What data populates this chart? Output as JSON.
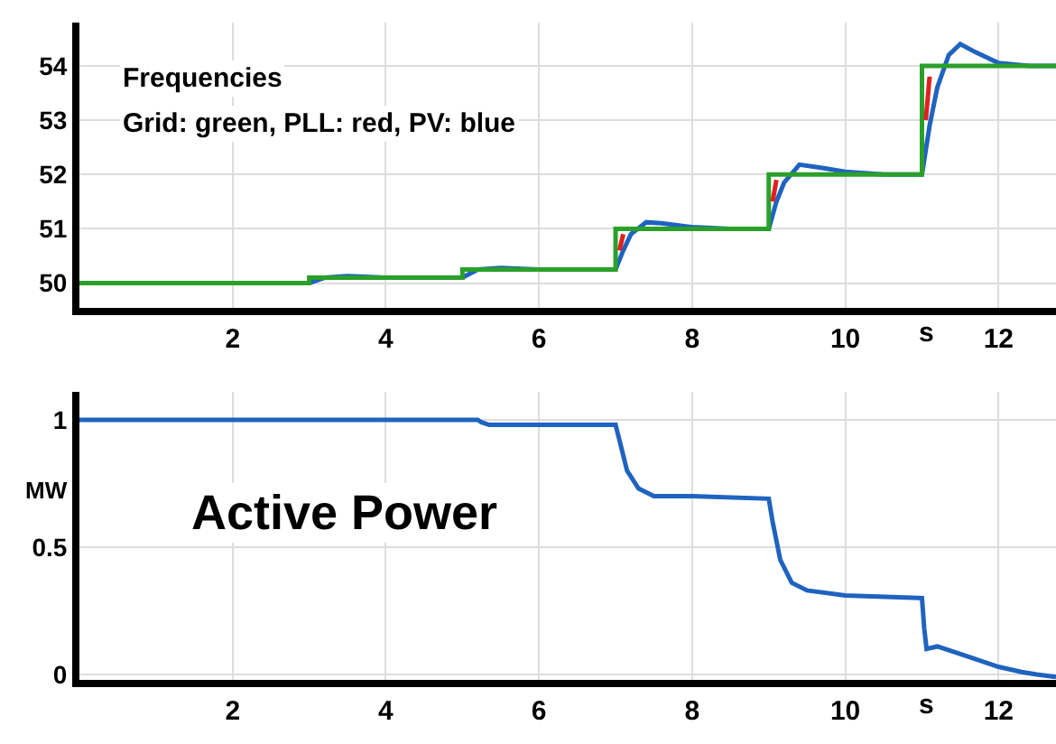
{
  "chart_data": [
    {
      "type": "line",
      "title": "Frequencies",
      "subtitle": "Grid: green, PLL: red, PV: blue",
      "xlabel": "s",
      "xlim": [
        0,
        12.75
      ],
      "xticks": [
        2,
        4,
        6,
        8,
        10,
        12
      ],
      "ylim": [
        49.55,
        54.8
      ],
      "yticks": [
        50,
        51,
        52,
        53,
        54
      ],
      "grid": true,
      "line_style": "solid",
      "marker": "none",
      "series": [
        {
          "color": "#1f63c0",
          "x": [
            0,
            3,
            3.2,
            3.5,
            4,
            5,
            5.2,
            5.5,
            6,
            7,
            7.1,
            7.2,
            7.4,
            7.6,
            8,
            8.5,
            9,
            9.1,
            9.2,
            9.4,
            9.7,
            10,
            10.5,
            11,
            11.1,
            11.2,
            11.35,
            11.5,
            11.7,
            12,
            12.4,
            12.75
          ],
          "values": [
            50,
            50,
            50.1,
            50.13,
            50.1,
            50.1,
            50.25,
            50.28,
            50.25,
            50.25,
            50.6,
            50.9,
            51.12,
            51.1,
            51.03,
            51,
            51,
            51.5,
            51.85,
            52.18,
            52.12,
            52.05,
            52,
            52,
            52.9,
            53.6,
            54.2,
            54.4,
            54.25,
            54.05,
            54,
            54
          ]
        },
        {
          "color": "#2aa02a",
          "x": [
            0,
            3,
            3,
            5,
            5,
            7,
            7,
            9,
            9,
            11,
            11,
            12.75
          ],
          "values": [
            50,
            50,
            50.1,
            50.1,
            50.25,
            50.25,
            51,
            51,
            52,
            52,
            54,
            54
          ]
        },
        {
          "color": "#e02020",
          "x": [
            7.05,
            7.1
          ],
          "values": [
            50.6,
            50.9
          ]
        },
        {
          "color": "#e02020",
          "x": [
            9.05,
            9.1
          ],
          "values": [
            51.5,
            51.9
          ]
        },
        {
          "color": "#e02020",
          "x": [
            11.05,
            11.1
          ],
          "values": [
            53.0,
            53.8
          ]
        }
      ]
    },
    {
      "type": "line",
      "title": "Active Power",
      "xlabel": "s",
      "ylabel": "MW",
      "xlim": [
        0,
        12.75
      ],
      "xticks": [
        2,
        4,
        6,
        8,
        10,
        12
      ],
      "ylim": [
        -0.02,
        1.11
      ],
      "yticks": [
        0,
        0.5,
        1
      ],
      "grid": true,
      "line_style": "solid",
      "marker": "none",
      "series": [
        {
          "color": "#1f63c0",
          "x": [
            0,
            5.2,
            5.25,
            5.35,
            6,
            7,
            7.05,
            7.15,
            7.3,
            7.5,
            8,
            9,
            9.05,
            9.15,
            9.3,
            9.5,
            10,
            11,
            11.03,
            11.06,
            11.2,
            11.6,
            12,
            12.3,
            12.5,
            12.75
          ],
          "values": [
            1,
            1,
            0.99,
            0.98,
            0.98,
            0.98,
            0.92,
            0.8,
            0.73,
            0.7,
            0.7,
            0.69,
            0.6,
            0.45,
            0.36,
            0.33,
            0.31,
            0.3,
            0.18,
            0.1,
            0.11,
            0.07,
            0.03,
            0.01,
            0,
            -0.01
          ]
        }
      ]
    }
  ]
}
